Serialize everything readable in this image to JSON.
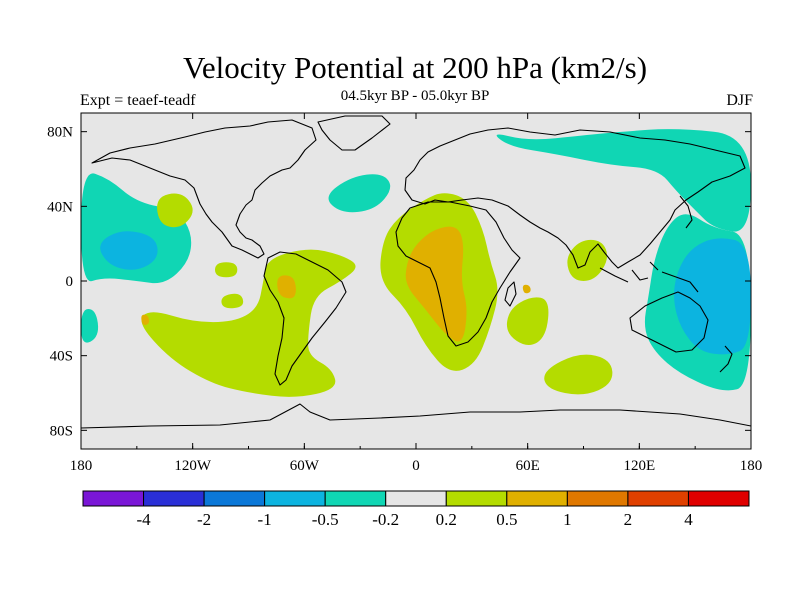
{
  "chart_data": {
    "type": "heatmap",
    "title": "Velocity Potential at 200 hPa (km2/s)",
    "subtitle": "04.5kyr BP - 05.0kyr BP",
    "left_label": "Expt = teaef-teadf",
    "right_label": "DJF",
    "xlim": [
      -180,
      180
    ],
    "ylim": [
      -90,
      90
    ],
    "x_ticks": [
      {
        "value": -180,
        "label": "180"
      },
      {
        "value": -120,
        "label": "120W"
      },
      {
        "value": -60,
        "label": "60W"
      },
      {
        "value": 0,
        "label": "0"
      },
      {
        "value": 60,
        "label": "60E"
      },
      {
        "value": 120,
        "label": "120E"
      },
      {
        "value": 180,
        "label": "180"
      }
    ],
    "y_ticks": [
      {
        "value": 80,
        "label": "80N"
      },
      {
        "value": 40,
        "label": "40N"
      },
      {
        "value": 0,
        "label": "0"
      },
      {
        "value": -40,
        "label": "40S"
      },
      {
        "value": -80,
        "label": "80S"
      }
    ],
    "colorbar": {
      "colors": [
        "#7a16d6",
        "#2a2fd6",
        "#0b78d8",
        "#0cb4e0",
        "#10d6b4",
        "#e6e6e6",
        "#b4dc00",
        "#e0b000",
        "#e07800",
        "#e04000",
        "#e00000"
      ],
      "labels": [
        "-4",
        "-2",
        "-1",
        "-0.5",
        "-0.2",
        "0.2",
        "0.5",
        "1",
        "2",
        "4"
      ]
    },
    "regions": [
      {
        "level": "cyan",
        "points": [
          [
            40,
            80
          ],
          [
            60,
            75
          ],
          [
            90,
            78
          ],
          [
            110,
            80
          ],
          [
            140,
            82
          ],
          [
            180,
            78
          ],
          [
            180,
            25
          ],
          [
            160,
            28
          ],
          [
            150,
            38
          ],
          [
            140,
            48
          ],
          [
            130,
            60
          ],
          [
            105,
            62
          ],
          [
            75,
            68
          ],
          [
            50,
            72
          ]
        ]
      },
      {
        "level": "cyan",
        "points": [
          [
            180,
            25
          ],
          [
            160,
            28
          ],
          [
            145,
            38
          ],
          [
            135,
            30
          ],
          [
            128,
            12
          ],
          [
            125,
            -8
          ],
          [
            122,
            -25
          ],
          [
            128,
            -38
          ],
          [
            142,
            -50
          ],
          [
            165,
            -60
          ],
          [
            180,
            -56
          ]
        ]
      },
      {
        "level": "blue",
        "points": [
          [
            180,
            20
          ],
          [
            162,
            24
          ],
          [
            148,
            18
          ],
          [
            140,
            5
          ],
          [
            138,
            -10
          ],
          [
            142,
            -25
          ],
          [
            152,
            -38
          ],
          [
            168,
            -40
          ],
          [
            180,
            -35
          ]
        ]
      },
      {
        "level": "cyan",
        "points": [
          [
            -180,
            60
          ],
          [
            -165,
            55
          ],
          [
            -150,
            42
          ],
          [
            -128,
            38
          ],
          [
            -120,
            25
          ],
          [
            -122,
            10
          ],
          [
            -135,
            -2
          ],
          [
            -150,
            0
          ],
          [
            -168,
            2
          ],
          [
            -180,
            -2
          ]
        ]
      },
      {
        "level": "blue",
        "points": [
          [
            -172,
            20
          ],
          [
            -158,
            28
          ],
          [
            -140,
            24
          ],
          [
            -138,
            12
          ],
          [
            -150,
            5
          ],
          [
            -165,
            8
          ]
        ]
      },
      {
        "level": "cyan",
        "points": [
          [
            -180,
            -15
          ],
          [
            -172,
            -15
          ],
          [
            -170,
            -30
          ],
          [
            -180,
            -35
          ]
        ]
      },
      {
        "level": "cyan",
        "points": [
          [
            -50,
            45
          ],
          [
            -35,
            56
          ],
          [
            -18,
            58
          ],
          [
            -12,
            50
          ],
          [
            -22,
            38
          ],
          [
            -40,
            36
          ]
        ]
      },
      {
        "level": "lime",
        "points": [
          [
            -140,
            45
          ],
          [
            -126,
            48
          ],
          [
            -118,
            38
          ],
          [
            -126,
            28
          ],
          [
            -138,
            30
          ]
        ]
      },
      {
        "level": "lime",
        "points": [
          [
            -108,
            10
          ],
          [
            -96,
            10
          ],
          [
            -96,
            2
          ],
          [
            -108,
            2
          ]
        ]
      },
      {
        "level": "lime",
        "points": [
          [
            -80,
            12
          ],
          [
            -58,
            18
          ],
          [
            -40,
            14
          ],
          [
            -30,
            8
          ],
          [
            -40,
            0
          ],
          [
            -55,
            -8
          ],
          [
            -58,
            -28
          ],
          [
            -58,
            -40
          ],
          [
            -45,
            -47
          ],
          [
            -42,
            -58
          ],
          [
            -65,
            -63
          ],
          [
            -90,
            -60
          ],
          [
            -110,
            -55
          ],
          [
            -132,
            -42
          ],
          [
            -150,
            -22
          ],
          [
            -143,
            -15
          ],
          [
            -120,
            -22
          ],
          [
            -98,
            -22
          ],
          [
            -85,
            -15
          ],
          [
            -82,
            0
          ]
        ]
      },
      {
        "level": "lime",
        "points": [
          [
            -105,
            -8
          ],
          [
            -94,
            -6
          ],
          [
            -92,
            -14
          ],
          [
            -104,
            -15
          ]
        ]
      },
      {
        "level": "lime",
        "points": [
          [
            -10,
            34
          ],
          [
            5,
            44
          ],
          [
            15,
            48
          ],
          [
            28,
            44
          ],
          [
            36,
            28
          ],
          [
            40,
            10
          ],
          [
            45,
            -5
          ],
          [
            40,
            -25
          ],
          [
            32,
            -45
          ],
          [
            18,
            -50
          ],
          [
            5,
            -35
          ],
          [
            -5,
            -15
          ],
          [
            -20,
            0
          ],
          [
            -18,
            22
          ]
        ]
      },
      {
        "level": "lime",
        "points": [
          [
            50,
            -15
          ],
          [
            62,
            -8
          ],
          [
            72,
            -10
          ],
          [
            70,
            -30
          ],
          [
            60,
            -36
          ],
          [
            48,
            -28
          ]
        ]
      },
      {
        "level": "lime",
        "points": [
          [
            80,
            12
          ],
          [
            88,
            22
          ],
          [
            100,
            22
          ],
          [
            104,
            12
          ],
          [
            96,
            0
          ],
          [
            84,
            0
          ]
        ]
      },
      {
        "level": "lime",
        "points": [
          [
            68,
            -48
          ],
          [
            88,
            -38
          ],
          [
            105,
            -42
          ],
          [
            106,
            -55
          ],
          [
            90,
            -62
          ],
          [
            70,
            -58
          ]
        ]
      },
      {
        "level": "orange",
        "points": [
          [
            0,
            20
          ],
          [
            10,
            28
          ],
          [
            22,
            30
          ],
          [
            26,
            20
          ],
          [
            24,
            0
          ],
          [
            28,
            -15
          ],
          [
            25,
            -35
          ],
          [
            15,
            -28
          ],
          [
            5,
            -15
          ],
          [
            -6,
            -2
          ],
          [
            -5,
            10
          ]
        ]
      },
      {
        "level": "orange",
        "points": [
          [
            -75,
            3
          ],
          [
            -66,
            3
          ],
          [
            -64,
            -5
          ],
          [
            -66,
            -10
          ],
          [
            -74,
            -8
          ]
        ]
      },
      {
        "level": "orange",
        "points": [
          [
            -148,
            -18
          ],
          [
            -144,
            -18
          ],
          [
            -143,
            -23
          ],
          [
            -147,
            -24
          ]
        ]
      },
      {
        "level": "orange",
        "points": [
          [
            57,
            -2
          ],
          [
            61,
            -2
          ],
          [
            62,
            -6
          ],
          [
            58,
            -7
          ]
        ]
      }
    ]
  }
}
